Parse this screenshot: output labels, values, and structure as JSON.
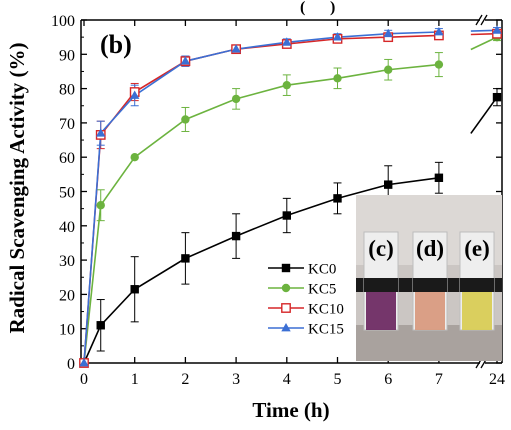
{
  "chart_data": {
    "type": "line",
    "panel_label": "(b)",
    "xlabel": "Time (h)",
    "ylabel": "Radical Scavenging Activity (%)",
    "ylim": [
      0,
      100
    ],
    "x_axis_break": "between 7 and 24",
    "x_ticks": [
      "0",
      "1",
      "2",
      "3",
      "4",
      "5",
      "6",
      "7",
      "24"
    ],
    "y_ticks": [
      "0",
      "10",
      "20",
      "30",
      "40",
      "50",
      "60",
      "70",
      "80",
      "90",
      "100"
    ],
    "x": [
      0,
      0.33,
      1,
      2,
      3,
      4,
      5,
      6,
      7,
      24
    ],
    "series": [
      {
        "name": "KC0",
        "color": "#000000",
        "marker": "filled-square",
        "values": [
          0,
          11,
          21.5,
          30.5,
          37,
          43,
          48,
          52,
          54,
          77.5
        ],
        "errors": [
          0,
          7.5,
          9.5,
          7.5,
          6.5,
          5,
          4.5,
          5.5,
          4.5,
          2.5
        ]
      },
      {
        "name": "KC5",
        "color": "#6cb33f",
        "marker": "filled-circle",
        "values": [
          0,
          46,
          60,
          71,
          77,
          81,
          83,
          85.5,
          87,
          95
        ],
        "errors": [
          0,
          4.5,
          0,
          3.5,
          3,
          3,
          3,
          3,
          3.5,
          1
        ]
      },
      {
        "name": "KC10",
        "color": "#d62728",
        "marker": "open-square",
        "values": [
          0,
          66.5,
          79,
          88,
          91.5,
          93,
          94.5,
          95,
          95.5,
          96
        ],
        "errors": [
          0,
          4,
          2.5,
          1.5,
          1,
          1,
          1,
          1,
          1,
          0.8
        ]
      },
      {
        "name": "KC15",
        "color": "#3b6fd4",
        "marker": "filled-triangle",
        "values": [
          0,
          67,
          78,
          88,
          91.5,
          93.5,
          95,
          96,
          96.5,
          97
        ],
        "errors": [
          0,
          3.5,
          3,
          1.5,
          1,
          1,
          1,
          1,
          1,
          0.8
        ]
      }
    ],
    "legend_position": "center-right",
    "inset": {
      "labels": [
        "(c)",
        "(d)",
        "(e)"
      ],
      "vial_colors": [
        "#6e2b63",
        "#d89a80",
        "#d8cc55"
      ]
    }
  }
}
